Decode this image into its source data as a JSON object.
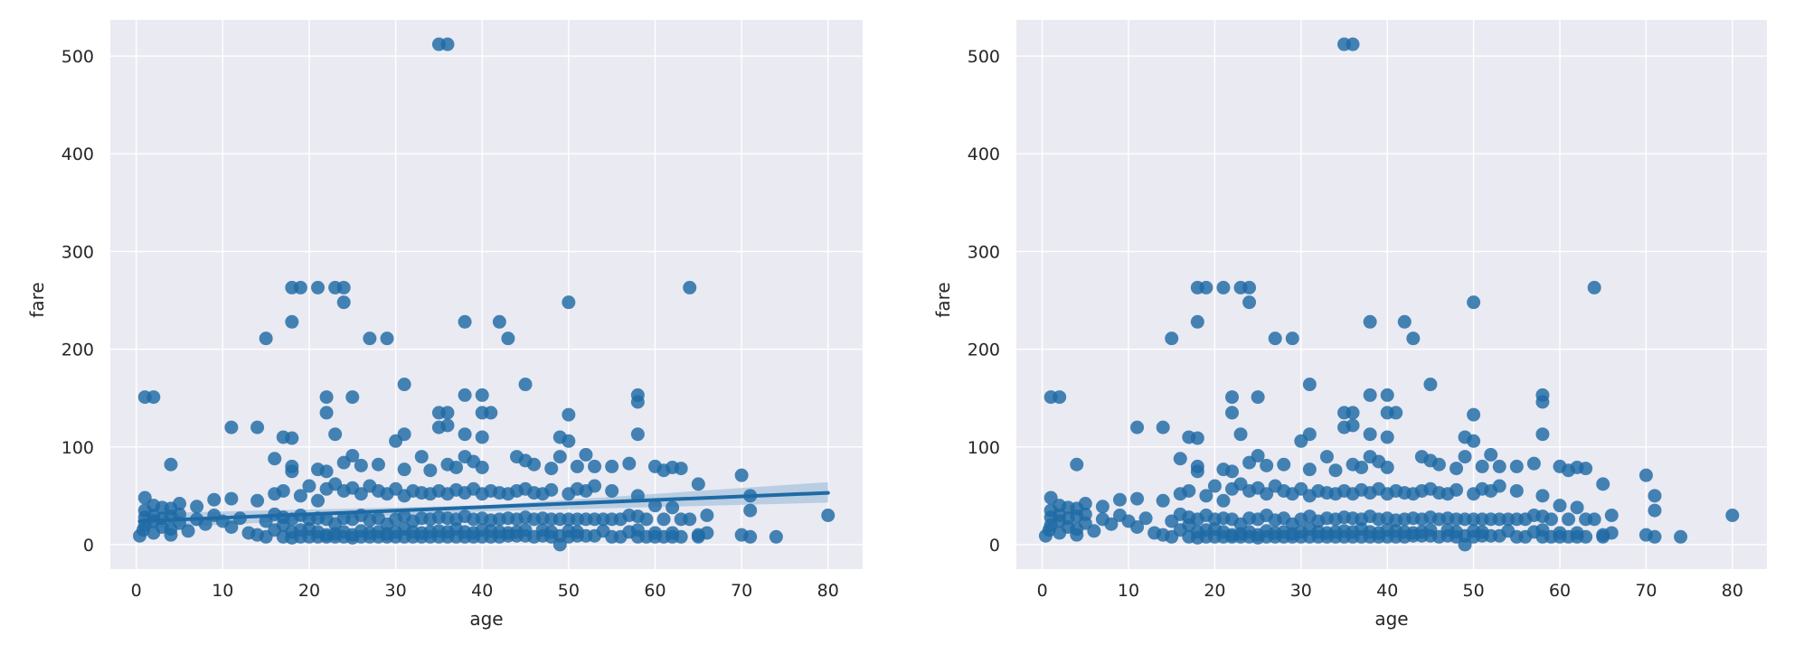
{
  "chart_data": [
    {
      "type": "scatter",
      "title": "",
      "xlabel": "age",
      "ylabel": "fare",
      "xlim": [
        -3,
        84
      ],
      "ylim": [
        -25,
        537
      ],
      "xticks": [
        0,
        10,
        20,
        30,
        40,
        50,
        60,
        70,
        80
      ],
      "yticks": [
        0,
        100,
        200,
        300,
        400,
        500
      ],
      "xtick_labels": [
        "0",
        "10",
        "20",
        "30",
        "40",
        "50",
        "60",
        "70",
        "80"
      ],
      "ytick_labels": [
        "0",
        "100",
        "200",
        "300",
        "400",
        "500"
      ],
      "grid": true,
      "background_color": "#eaeaf2",
      "point_color": "#1f6aa5",
      "regression": {
        "show": true,
        "line": [
          [
            0.4,
            24
          ],
          [
            80,
            53
          ]
        ],
        "ci_lower": [
          [
            0.4,
            16
          ],
          [
            40,
            34
          ],
          [
            80,
            43
          ]
        ],
        "ci_upper": [
          [
            0.4,
            32
          ],
          [
            40,
            40
          ],
          [
            80,
            64
          ]
        ],
        "line_color": "#1f6aa5",
        "band_color": "#8fb6d6"
      }
    },
    {
      "type": "scatter",
      "title": "",
      "xlabel": "age",
      "ylabel": "fare",
      "xlim": [
        -3,
        84
      ],
      "ylim": [
        -25,
        537
      ],
      "xticks": [
        0,
        10,
        20,
        30,
        40,
        50,
        60,
        70,
        80
      ],
      "yticks": [
        0,
        100,
        200,
        300,
        400,
        500
      ],
      "xtick_labels": [
        "0",
        "10",
        "20",
        "30",
        "40",
        "50",
        "60",
        "70",
        "80"
      ],
      "ytick_labels": [
        "0",
        "100",
        "200",
        "300",
        "400",
        "500"
      ],
      "grid": true,
      "background_color": "#eaeaf2",
      "point_color": "#1f6aa5",
      "regression": {
        "show": false
      }
    }
  ],
  "points": [
    [
      35,
      512
    ],
    [
      36,
      512
    ],
    [
      18,
      263
    ],
    [
      19,
      263
    ],
    [
      21,
      263
    ],
    [
      23,
      263
    ],
    [
      24,
      263
    ],
    [
      64,
      263
    ],
    [
      24,
      248
    ],
    [
      50,
      248
    ],
    [
      18,
      228
    ],
    [
      38,
      228
    ],
    [
      42,
      228
    ],
    [
      15,
      211
    ],
    [
      27,
      211
    ],
    [
      29,
      211
    ],
    [
      43,
      211
    ],
    [
      31,
      164
    ],
    [
      45,
      164
    ],
    [
      1,
      151
    ],
    [
      2,
      151
    ],
    [
      22,
      151
    ],
    [
      25,
      151
    ],
    [
      58,
      153
    ],
    [
      58,
      146
    ],
    [
      38,
      153
    ],
    [
      40,
      153
    ],
    [
      22,
      135
    ],
    [
      35,
      135
    ],
    [
      36,
      135
    ],
    [
      40,
      135
    ],
    [
      41,
      135
    ],
    [
      50,
      133
    ],
    [
      11,
      120
    ],
    [
      14,
      120
    ],
    [
      35,
      120
    ],
    [
      36,
      122
    ],
    [
      17,
      110
    ],
    [
      18,
      109
    ],
    [
      23,
      113
    ],
    [
      31,
      113
    ],
    [
      38,
      113
    ],
    [
      49,
      110
    ],
    [
      58,
      113
    ],
    [
      30,
      106
    ],
    [
      40,
      110
    ],
    [
      50,
      106
    ],
    [
      4,
      82
    ],
    [
      16,
      88
    ],
    [
      18,
      80
    ],
    [
      18,
      75
    ],
    [
      21,
      77
    ],
    [
      22,
      75
    ],
    [
      24,
      84
    ],
    [
      25,
      91
    ],
    [
      26,
      81
    ],
    [
      28,
      82
    ],
    [
      31,
      77
    ],
    [
      33,
      90
    ],
    [
      34,
      76
    ],
    [
      36,
      82
    ],
    [
      37,
      79
    ],
    [
      38,
      90
    ],
    [
      39,
      85
    ],
    [
      40,
      79
    ],
    [
      44,
      90
    ],
    [
      45,
      86
    ],
    [
      46,
      82
    ],
    [
      48,
      78
    ],
    [
      49,
      90
    ],
    [
      51,
      80
    ],
    [
      52,
      92
    ],
    [
      53,
      80
    ],
    [
      55,
      80
    ],
    [
      57,
      83
    ],
    [
      60,
      80
    ],
    [
      61,
      76
    ],
    [
      62,
      79
    ],
    [
      63,
      78
    ],
    [
      65,
      62
    ],
    [
      70,
      71
    ],
    [
      71,
      50
    ],
    [
      71,
      35
    ],
    [
      1,
      48
    ],
    [
      2,
      40
    ],
    [
      3,
      38
    ],
    [
      4,
      37
    ],
    [
      5,
      42
    ],
    [
      7,
      39
    ],
    [
      9,
      46
    ],
    [
      11,
      47
    ],
    [
      14,
      45
    ],
    [
      16,
      52
    ],
    [
      17,
      55
    ],
    [
      19,
      50
    ],
    [
      20,
      60
    ],
    [
      21,
      45
    ],
    [
      22,
      57
    ],
    [
      23,
      62
    ],
    [
      24,
      55
    ],
    [
      25,
      58
    ],
    [
      26,
      52
    ],
    [
      27,
      60
    ],
    [
      28,
      55
    ],
    [
      29,
      52
    ],
    [
      30,
      57
    ],
    [
      31,
      50
    ],
    [
      32,
      55
    ],
    [
      33,
      53
    ],
    [
      34,
      52
    ],
    [
      35,
      55
    ],
    [
      36,
      52
    ],
    [
      37,
      56
    ],
    [
      38,
      53
    ],
    [
      39,
      57
    ],
    [
      40,
      52
    ],
    [
      41,
      55
    ],
    [
      42,
      53
    ],
    [
      43,
      52
    ],
    [
      44,
      55
    ],
    [
      45,
      57
    ],
    [
      46,
      53
    ],
    [
      47,
      52
    ],
    [
      48,
      56
    ],
    [
      50,
      52
    ],
    [
      51,
      57
    ],
    [
      52,
      55
    ],
    [
      53,
      60
    ],
    [
      55,
      55
    ],
    [
      58,
      50
    ],
    [
      60,
      40
    ],
    [
      62,
      38
    ],
    [
      66,
      30
    ],
    [
      0.4,
      9
    ],
    [
      0.8,
      15
    ],
    [
      1,
      20
    ],
    [
      1,
      28
    ],
    [
      1,
      35
    ],
    [
      2,
      12
    ],
    [
      2,
      24
    ],
    [
      2,
      30
    ],
    [
      3,
      18
    ],
    [
      3,
      27
    ],
    [
      4,
      10
    ],
    [
      4,
      16
    ],
    [
      4,
      29
    ],
    [
      5,
      22
    ],
    [
      5,
      31
    ],
    [
      6,
      14
    ],
    [
      7,
      26
    ],
    [
      8,
      21
    ],
    [
      9,
      30
    ],
    [
      10,
      24
    ],
    [
      11,
      18
    ],
    [
      12,
      27
    ],
    [
      13,
      12
    ],
    [
      14,
      10
    ],
    [
      15,
      8
    ],
    [
      15,
      24
    ],
    [
      16,
      15
    ],
    [
      16,
      31
    ],
    [
      17,
      8
    ],
    [
      17,
      20
    ],
    [
      17,
      28
    ],
    [
      18,
      7
    ],
    [
      18,
      13
    ],
    [
      18,
      26
    ],
    [
      19,
      8
    ],
    [
      19,
      15
    ],
    [
      19,
      30
    ],
    [
      20,
      8
    ],
    [
      20,
      16
    ],
    [
      20,
      26
    ],
    [
      21,
      8
    ],
    [
      21,
      13
    ],
    [
      21,
      27
    ],
    [
      22,
      8
    ],
    [
      22,
      10
    ],
    [
      22,
      26
    ],
    [
      23,
      8
    ],
    [
      23,
      11
    ],
    [
      23,
      21
    ],
    [
      24,
      8
    ],
    [
      24,
      13
    ],
    [
      24,
      27
    ],
    [
      25,
      7
    ],
    [
      25,
      10
    ],
    [
      25,
      26
    ],
    [
      26,
      8
    ],
    [
      26,
      14
    ],
    [
      26,
      30
    ],
    [
      27,
      8
    ],
    [
      27,
      12
    ],
    [
      27,
      25
    ],
    [
      28,
      8
    ],
    [
      28,
      13
    ],
    [
      28,
      27
    ],
    [
      29,
      8
    ],
    [
      29,
      11
    ],
    [
      29,
      21
    ],
    [
      30,
      8
    ],
    [
      30,
      13
    ],
    [
      30,
      26
    ],
    [
      31,
      8
    ],
    [
      31,
      16
    ],
    [
      31,
      29
    ],
    [
      32,
      8
    ],
    [
      32,
      13
    ],
    [
      32,
      24
    ],
    [
      33,
      8
    ],
    [
      33,
      12
    ],
    [
      33,
      27
    ],
    [
      34,
      8
    ],
    [
      34,
      13
    ],
    [
      34,
      26
    ],
    [
      35,
      8
    ],
    [
      35,
      14
    ],
    [
      35,
      28
    ],
    [
      36,
      8
    ],
    [
      36,
      13
    ],
    [
      36,
      27
    ],
    [
      37,
      8
    ],
    [
      37,
      16
    ],
    [
      37,
      26
    ],
    [
      38,
      8
    ],
    [
      38,
      13
    ],
    [
      38,
      29
    ],
    [
      39,
      8
    ],
    [
      39,
      12
    ],
    [
      39,
      26
    ],
    [
      40,
      8
    ],
    [
      40,
      15
    ],
    [
      40,
      27
    ],
    [
      41,
      8
    ],
    [
      41,
      14
    ],
    [
      41,
      25
    ],
    [
      42,
      8
    ],
    [
      42,
      13
    ],
    [
      42,
      26
    ],
    [
      43,
      9
    ],
    [
      43,
      12
    ],
    [
      43,
      27
    ],
    [
      44,
      9
    ],
    [
      44,
      13
    ],
    [
      44,
      26
    ],
    [
      45,
      9
    ],
    [
      45,
      15
    ],
    [
      45,
      28
    ],
    [
      46,
      8
    ],
    [
      46,
      26
    ],
    [
      47,
      9
    ],
    [
      47,
      15
    ],
    [
      47,
      27
    ],
    [
      48,
      8
    ],
    [
      48,
      13
    ],
    [
      48,
      26
    ],
    [
      49,
      0
    ],
    [
      49,
      9
    ],
    [
      49,
      26
    ],
    [
      50,
      8
    ],
    [
      50,
      14
    ],
    [
      50,
      26
    ],
    [
      51,
      9
    ],
    [
      51,
      13
    ],
    [
      51,
      26
    ],
    [
      52,
      9
    ],
    [
      52,
      26
    ],
    [
      53,
      9
    ],
    [
      53,
      26
    ],
    [
      54,
      14
    ],
    [
      54,
      26
    ],
    [
      55,
      8
    ],
    [
      55,
      26
    ],
    [
      56,
      8
    ],
    [
      56,
      26
    ],
    [
      57,
      13
    ],
    [
      57,
      30
    ],
    [
      58,
      8
    ],
    [
      58,
      15
    ],
    [
      58,
      29
    ],
    [
      59,
      8
    ],
    [
      59,
      26
    ],
    [
      60,
      8
    ],
    [
      60,
      12
    ],
    [
      61,
      8
    ],
    [
      61,
      26
    ],
    [
      62,
      8
    ],
    [
      62,
      12
    ],
    [
      63,
      8
    ],
    [
      63,
      26
    ],
    [
      64,
      26
    ],
    [
      65,
      8
    ],
    [
      65,
      10
    ],
    [
      66,
      12
    ],
    [
      70,
      10
    ],
    [
      71,
      8
    ],
    [
      74,
      8
    ],
    [
      80,
      30
    ]
  ]
}
